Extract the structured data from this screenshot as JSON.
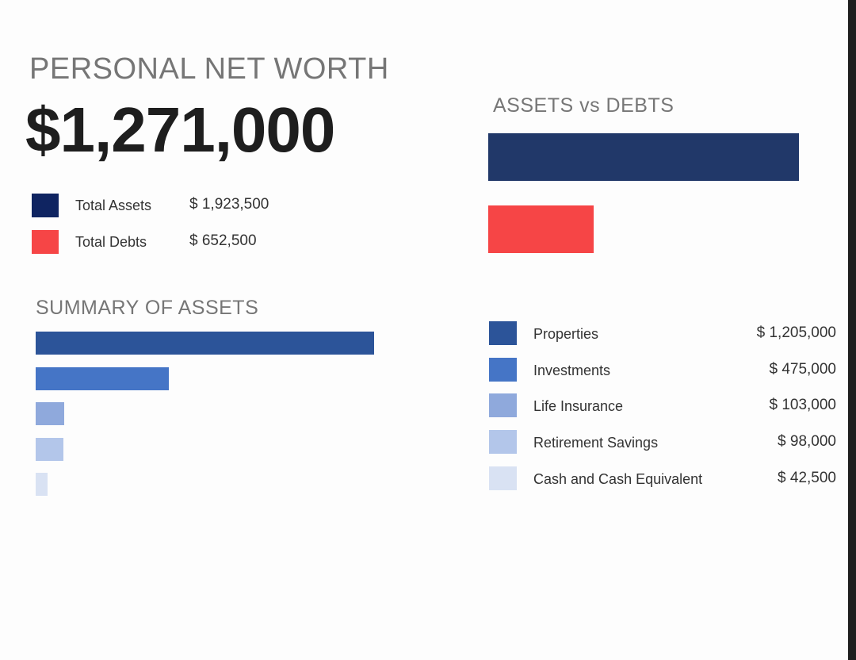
{
  "header": {
    "title": "PERSONAL NET WORTH",
    "net_worth": "$1,271,000"
  },
  "summary": [
    {
      "label": "Total Assets",
      "value": "$ 1,923,500",
      "color": "#0f2461"
    },
    {
      "label": "Total Debts",
      "value": "$ 652,500",
      "color": "#f64546"
    }
  ],
  "chart_data": [
    {
      "type": "bar",
      "orientation": "horizontal",
      "title": "ASSETS vs DEBTS",
      "categories": [
        "Total Assets",
        "Total Debts"
      ],
      "values": [
        1923500,
        652500
      ],
      "colors": [
        "#213869",
        "#f64546"
      ],
      "grid": false
    },
    {
      "type": "bar",
      "orientation": "horizontal",
      "title": "SUMMARY OF ASSETS",
      "categories": [
        "Properties",
        "Investments",
        "Life Insurance",
        "Retirement Savings",
        "Cash and Cash Equivalent"
      ],
      "values": [
        1205000,
        475000,
        103000,
        98000,
        42500
      ],
      "value_labels": [
        "$ 1,205,000",
        "$ 475,000",
        "$ 103,000",
        "$ 98,000",
        "$ 42,500"
      ],
      "colors": [
        "#2c5499",
        "#4575c6",
        "#8fa9dc",
        "#b3c6ea",
        "#d9e2f3"
      ],
      "legend_placement": "right",
      "grid": false
    }
  ]
}
